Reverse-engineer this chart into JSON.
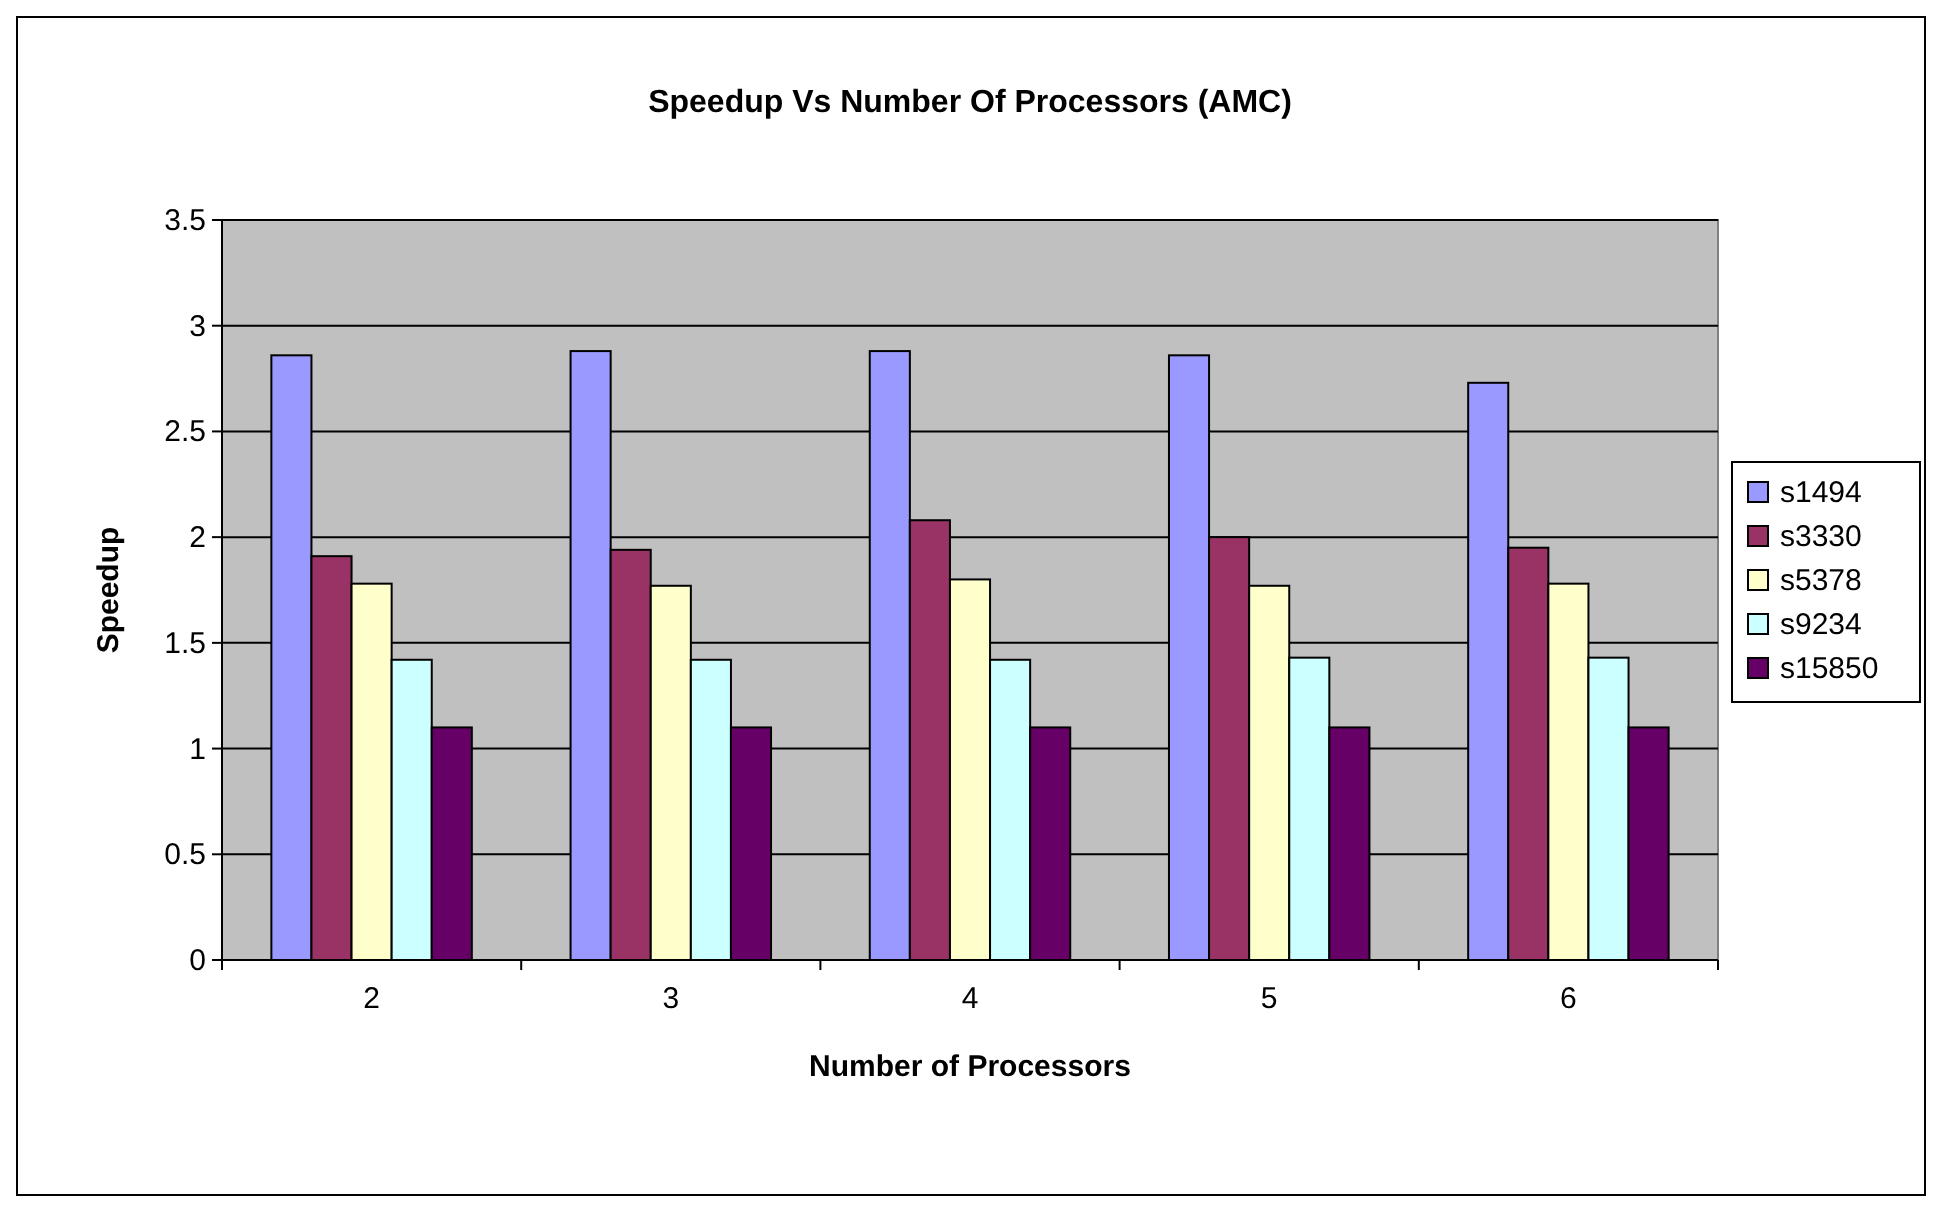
{
  "chart_data": {
    "type": "bar",
    "title": "Speedup Vs Number Of Processors (AMC)",
    "xlabel": "Number of Processors",
    "ylabel": "Speedup",
    "categories": [
      "2",
      "3",
      "4",
      "5",
      "6"
    ],
    "series": [
      {
        "name": "s1494",
        "color": "#9999ff",
        "values": [
          2.86,
          2.88,
          2.88,
          2.86,
          2.73
        ]
      },
      {
        "name": "s3330",
        "color": "#993366",
        "values": [
          1.91,
          1.94,
          2.08,
          2.0,
          1.95
        ]
      },
      {
        "name": "s5378",
        "color": "#ffffcc",
        "values": [
          1.78,
          1.77,
          1.8,
          1.77,
          1.78
        ]
      },
      {
        "name": "s9234",
        "color": "#ccffff",
        "values": [
          1.42,
          1.42,
          1.42,
          1.43,
          1.43
        ]
      },
      {
        "name": "s15850",
        "color": "#660066",
        "values": [
          1.1,
          1.1,
          1.1,
          1.1,
          1.1
        ]
      }
    ],
    "ylim": [
      0,
      3.5
    ],
    "yticks": [
      0,
      0.5,
      1,
      1.5,
      2,
      2.5,
      3,
      3.5
    ],
    "grid": "y",
    "legend": "right"
  }
}
